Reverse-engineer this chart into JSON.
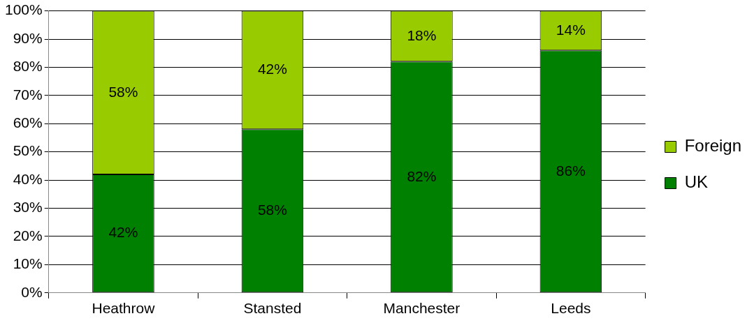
{
  "chart_data": {
    "type": "bar",
    "stacked": true,
    "categories": [
      "Heathrow",
      "Stansted",
      "Manchester",
      "Leeds"
    ],
    "series": [
      {
        "name": "UK",
        "color": "#008000",
        "values": [
          42,
          58,
          82,
          86
        ],
        "value_labels": [
          "42%",
          "58%",
          "82%",
          "86%"
        ]
      },
      {
        "name": "Foreign",
        "color": "#99cc00",
        "values": [
          58,
          42,
          18,
          14
        ],
        "value_labels": [
          "58%",
          "42%",
          "18%",
          "14%"
        ]
      }
    ],
    "ylim": [
      0,
      100
    ],
    "yticks": [
      {
        "value": 0,
        "label": "0%"
      },
      {
        "value": 10,
        "label": "10%"
      },
      {
        "value": 20,
        "label": "20%"
      },
      {
        "value": 30,
        "label": "30%"
      },
      {
        "value": 40,
        "label": "40%"
      },
      {
        "value": 50,
        "label": "50%"
      },
      {
        "value": 60,
        "label": "60%"
      },
      {
        "value": 70,
        "label": "70%"
      },
      {
        "value": 80,
        "label": "80%"
      },
      {
        "value": 90,
        "label": "90%"
      },
      {
        "value": 100,
        "label": "100%"
      }
    ],
    "grid": "y",
    "legend": "right"
  }
}
